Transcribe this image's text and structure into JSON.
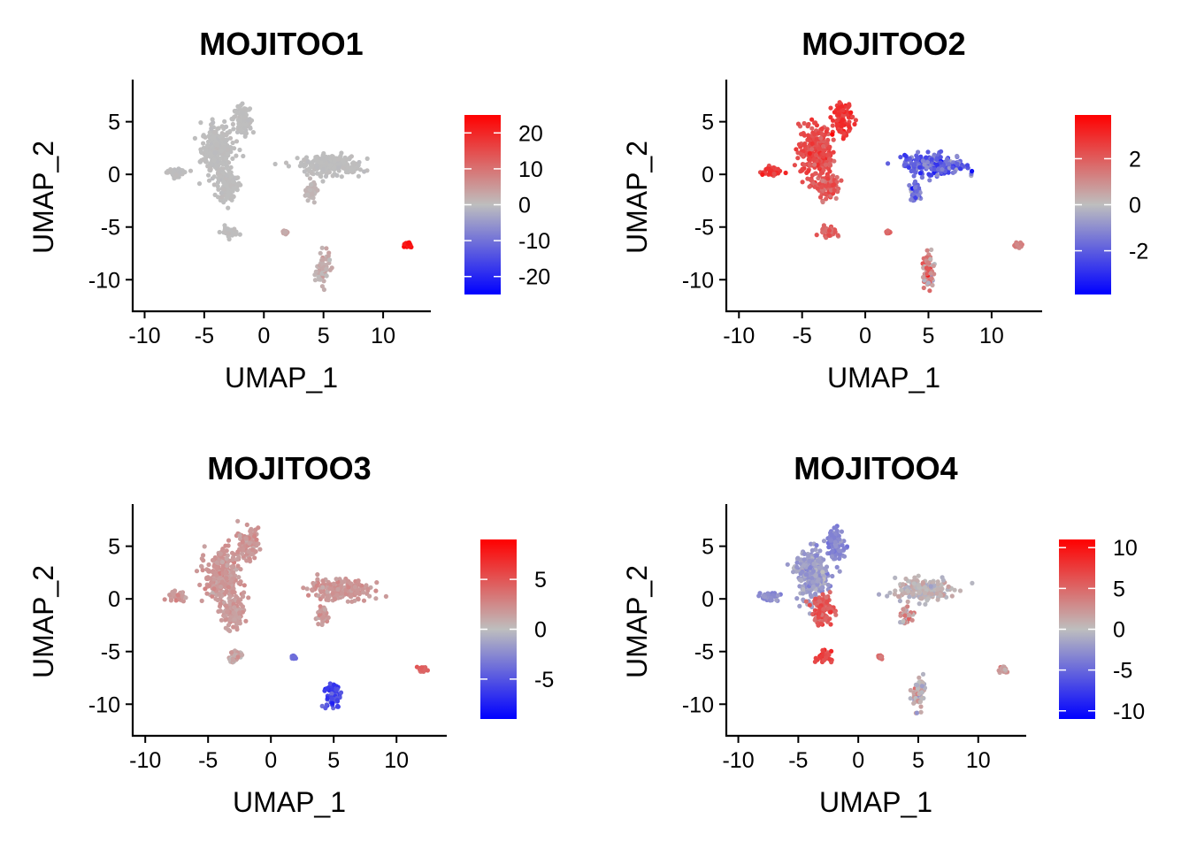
{
  "figure": {
    "background": "#ffffff"
  },
  "colors": {
    "low": "#0000ff",
    "mid": "#bebebe",
    "high": "#ff0000",
    "axis": "#000000"
  },
  "chart_data": [
    {
      "type": "scatter",
      "title": "MOJITOO1",
      "xlabel": "UMAP_1",
      "ylabel": "UMAP_2",
      "xlim": [
        -11,
        14
      ],
      "ylim": [
        -13,
        9
      ],
      "xticks": [
        -10,
        -5,
        0,
        5,
        10
      ],
      "yticks": [
        5,
        0,
        -5,
        -10
      ],
      "legend": {
        "position": "right",
        "min": -25,
        "max": 25,
        "ticks": [
          20,
          10,
          0,
          -10,
          -20
        ]
      },
      "clusters": [
        {
          "x": [
            -7.4,
            0.7
          ],
          "y": [
            0.2,
            0.4
          ],
          "value": 0,
          "spread": 0.15
        },
        {
          "x": [
            -3.9,
            1.2
          ],
          "y": [
            2.2,
            2.2
          ],
          "value": 0,
          "spread": 0.15
        },
        {
          "x": [
            -1.8,
            0.7
          ],
          "y": [
            5.2,
            1.3
          ],
          "value": 0,
          "spread": 0.15
        },
        {
          "x": [
            -3.0,
            0.8
          ],
          "y": [
            -1.1,
            1.3
          ],
          "value": 0,
          "spread": 0.15
        },
        {
          "x": [
            5.5,
            2.2
          ],
          "y": [
            0.9,
            0.9
          ],
          "value": 0,
          "spread": 0.15
        },
        {
          "x": [
            4.0,
            0.4
          ],
          "y": [
            -1.6,
            0.8
          ],
          "value": 1,
          "spread": 0.3
        },
        {
          "x": [
            -2.9,
            0.6
          ],
          "y": [
            -5.5,
            0.5
          ],
          "value": 0,
          "spread": 0.15
        },
        {
          "x": [
            5.0,
            0.5
          ],
          "y": [
            -9.1,
            1.3
          ],
          "value": 2,
          "spread": 1.5
        },
        {
          "x": [
            1.8,
            0.12
          ],
          "y": [
            -5.5,
            0.12
          ],
          "value": 3,
          "spread": 0.5
        },
        {
          "x": [
            12.1,
            0.25
          ],
          "y": [
            -6.7,
            0.2
          ],
          "value": 22,
          "spread": 1.5
        }
      ]
    },
    {
      "type": "scatter",
      "title": "MOJITOO2",
      "xlabel": "UMAP_1",
      "ylabel": "UMAP_2",
      "xlim": [
        -11,
        14
      ],
      "ylim": [
        -13,
        9
      ],
      "xticks": [
        -10,
        -5,
        0,
        5,
        10
      ],
      "yticks": [
        5,
        0,
        -5,
        -10
      ],
      "legend": {
        "position": "right",
        "min": -3.9,
        "max": 3.9,
        "ticks": [
          2,
          0,
          -2
        ]
      },
      "clusters": [
        {
          "x": [
            -7.4,
            0.7
          ],
          "y": [
            0.2,
            0.4
          ],
          "value": 2.6,
          "spread": 0.3
        },
        {
          "x": [
            -3.9,
            1.2
          ],
          "y": [
            2.2,
            2.2
          ],
          "value": 2.4,
          "spread": 0.3
        },
        {
          "x": [
            -1.8,
            0.7
          ],
          "y": [
            5.2,
            1.3
          ],
          "value": 2.8,
          "spread": 0.3
        },
        {
          "x": [
            -3.0,
            0.8
          ],
          "y": [
            -1.1,
            1.3
          ],
          "value": 2.0,
          "spread": 0.4
        },
        {
          "x": [
            5.5,
            2.2
          ],
          "y": [
            0.9,
            0.9
          ],
          "value": -1.9,
          "spread": 0.7
        },
        {
          "x": [
            4.0,
            0.4
          ],
          "y": [
            -1.6,
            0.8
          ],
          "value": -1.6,
          "spread": 0.6
        },
        {
          "x": [
            -2.9,
            0.6
          ],
          "y": [
            -5.5,
            0.5
          ],
          "value": 1.8,
          "spread": 0.3
        },
        {
          "x": [
            5.0,
            0.5
          ],
          "y": [
            -9.1,
            1.3
          ],
          "value": 1.3,
          "spread": 0.9
        },
        {
          "x": [
            1.8,
            0.12
          ],
          "y": [
            -5.5,
            0.12
          ],
          "value": 1.8,
          "spread": 0.2
        },
        {
          "x": [
            12.1,
            0.25
          ],
          "y": [
            -6.7,
            0.2
          ],
          "value": 1.2,
          "spread": 0.3
        }
      ]
    },
    {
      "type": "scatter",
      "title": "MOJITOO3",
      "xlabel": "UMAP_1",
      "ylabel": "UMAP_2",
      "xlim": [
        -11,
        14
      ],
      "ylim": [
        -13,
        9
      ],
      "xticks": [
        -10,
        -5,
        0,
        5,
        10
      ],
      "yticks": [
        5,
        0,
        -5,
        -10
      ],
      "legend": {
        "position": "right",
        "min": -9,
        "max": 9,
        "ticks": [
          5,
          0,
          -5
        ]
      },
      "clusters": [
        {
          "x": [
            -7.4,
            0.7
          ],
          "y": [
            0.2,
            0.4
          ],
          "value": 1.8,
          "spread": 0.4
        },
        {
          "x": [
            -3.9,
            1.2
          ],
          "y": [
            2.2,
            2.2
          ],
          "value": 1.8,
          "spread": 0.4
        },
        {
          "x": [
            -1.8,
            0.7
          ],
          "y": [
            5.2,
            1.3
          ],
          "value": 1.8,
          "spread": 0.4
        },
        {
          "x": [
            -3.0,
            0.8
          ],
          "y": [
            -1.1,
            1.3
          ],
          "value": 1.6,
          "spread": 0.4
        },
        {
          "x": [
            5.5,
            2.2
          ],
          "y": [
            0.9,
            0.9
          ],
          "value": 1.8,
          "spread": 0.4
        },
        {
          "x": [
            4.0,
            0.4
          ],
          "y": [
            -1.6,
            0.8
          ],
          "value": 1.8,
          "spread": 0.4
        },
        {
          "x": [
            -2.9,
            0.6
          ],
          "y": [
            -5.5,
            0.5
          ],
          "value": 1.2,
          "spread": 0.5
        },
        {
          "x": [
            5.0,
            0.5
          ],
          "y": [
            -9.1,
            1.3
          ],
          "value": -5.5,
          "spread": 1.2
        },
        {
          "x": [
            1.8,
            0.12
          ],
          "y": [
            -5.5,
            0.12
          ],
          "value": -4.0,
          "spread": 0.3
        },
        {
          "x": [
            12.1,
            0.25
          ],
          "y": [
            -6.7,
            0.2
          ],
          "value": 4.5,
          "spread": 0.5
        }
      ]
    },
    {
      "type": "scatter",
      "title": "MOJITOO4",
      "xlabel": "UMAP_1",
      "ylabel": "UMAP_2",
      "xlim": [
        -11,
        14
      ],
      "ylim": [
        -13,
        9
      ],
      "xticks": [
        -10,
        -5,
        0,
        5,
        10
      ],
      "yticks": [
        5,
        0,
        -5,
        -10
      ],
      "legend": {
        "position": "right",
        "min": -11,
        "max": 11,
        "ticks": [
          10,
          5,
          0,
          -5,
          -10
        ]
      },
      "clusters": [
        {
          "x": [
            -7.4,
            0.7
          ],
          "y": [
            0.2,
            0.4
          ],
          "value": -3.0,
          "spread": 0.6
        },
        {
          "x": [
            -3.9,
            1.2
          ],
          "y": [
            2.2,
            2.2
          ],
          "value": -2.0,
          "spread": 0.8
        },
        {
          "x": [
            -1.8,
            0.7
          ],
          "y": [
            5.2,
            1.3
          ],
          "value": -3.2,
          "spread": 0.6
        },
        {
          "x": [
            -3.0,
            0.8
          ],
          "y": [
            -1.1,
            1.3
          ],
          "value": 6.0,
          "spread": 1.0
        },
        {
          "x": [
            5.5,
            2.2
          ],
          "y": [
            0.9,
            0.9
          ],
          "value": 0.3,
          "spread": 0.8
        },
        {
          "x": [
            4.0,
            0.4
          ],
          "y": [
            -1.6,
            0.8
          ],
          "value": 1.5,
          "spread": 1.5
        },
        {
          "x": [
            -2.9,
            0.6
          ],
          "y": [
            -5.5,
            0.5
          ],
          "value": 7.5,
          "spread": 0.8
        },
        {
          "x": [
            5.0,
            0.5
          ],
          "y": [
            -9.1,
            1.3
          ],
          "value": 0.5,
          "spread": 1.5
        },
        {
          "x": [
            1.8,
            0.12
          ],
          "y": [
            -5.5,
            0.12
          ],
          "value": 4.5,
          "spread": 0.5
        },
        {
          "x": [
            12.1,
            0.25
          ],
          "y": [
            -6.7,
            0.2
          ],
          "value": 2.0,
          "spread": 0.5
        }
      ]
    }
  ]
}
